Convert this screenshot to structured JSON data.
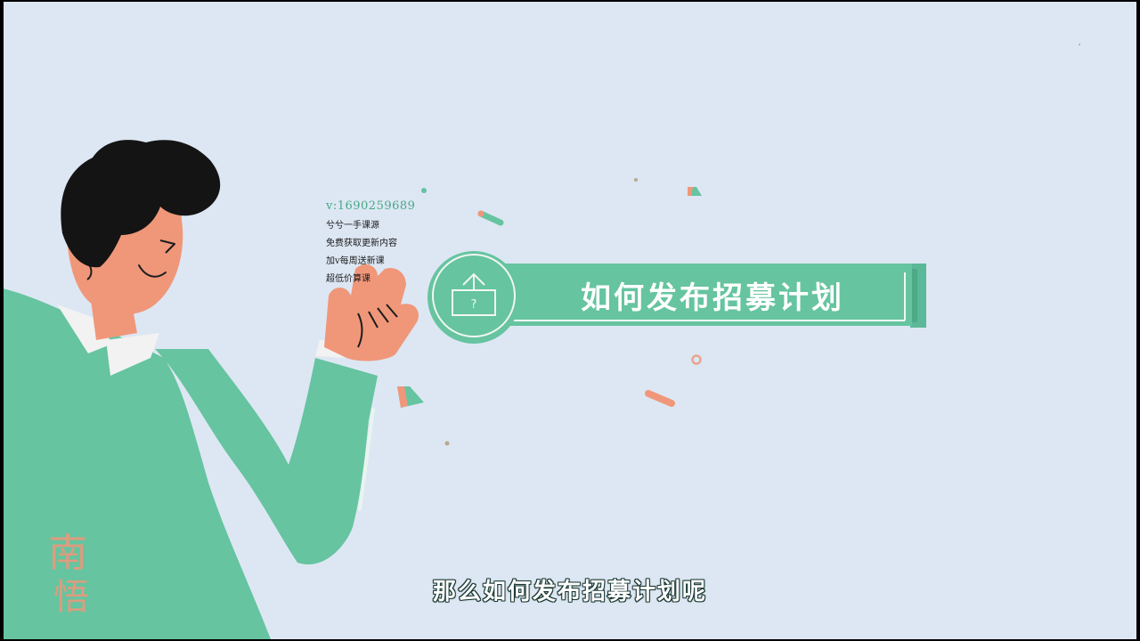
{
  "watermark": {
    "contact_id": "v:1690259689",
    "lines": [
      "兮兮一手课源",
      "免费获取更新内容",
      "加v每周送新课",
      "超低价算课"
    ]
  },
  "title_card": {
    "title": "如何发布招募计划",
    "icon": "upload-box-question-icon"
  },
  "subtitle": "那么如何发布招募计划呢",
  "logo": {
    "text": "南悟",
    "icon": "brand-logo-calligraphy"
  },
  "colors": {
    "background": "#dde7f3",
    "accent_green": "#66c4a0",
    "skin": "#f0977a",
    "hair": "#141414"
  }
}
